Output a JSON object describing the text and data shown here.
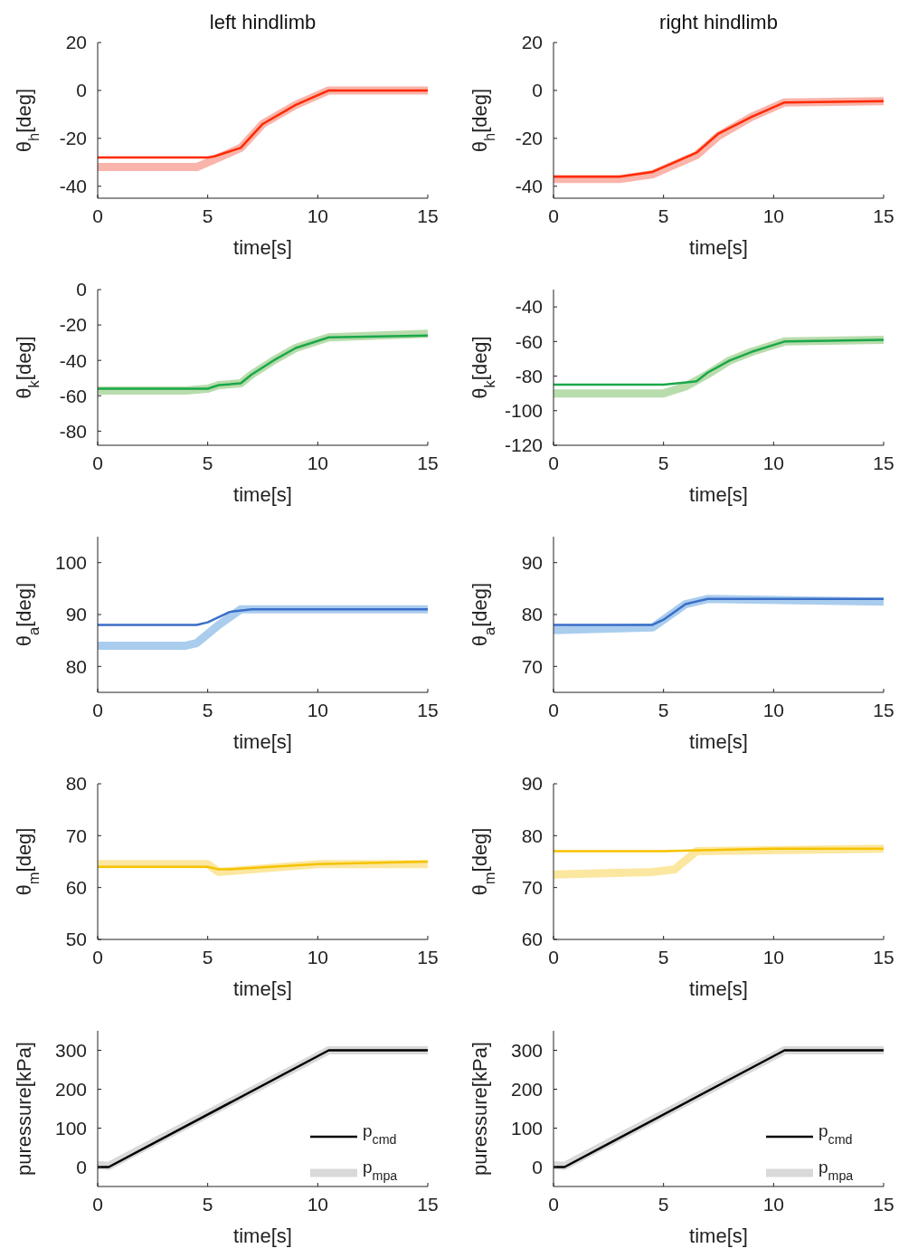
{
  "chart_data": [
    {
      "type": "line",
      "title": "left hindlimb",
      "xlabel": "time[s]",
      "ylabel": "θ$_{h}$[deg]",
      "xlim": [
        0,
        15
      ],
      "xticks": [
        0,
        5,
        10,
        15
      ],
      "ylim": [
        -45,
        20
      ],
      "yticks": [
        -40,
        -20,
        0,
        20
      ],
      "grid": false,
      "legend": false,
      "series": [
        {
          "color": "#f9b4ab",
          "x": [
            0,
            4.5,
            5.5,
            6.5,
            7.5,
            9,
            10.5,
            15
          ],
          "values": [
            -32,
            -32,
            -28,
            -24,
            -14,
            -6,
            0,
            0
          ]
        },
        {
          "color": "#ff2a00",
          "x": [
            0,
            5,
            5.3,
            6.5,
            7.5,
            9,
            10.5,
            15
          ],
          "values": [
            -28,
            -28,
            -27.5,
            -24,
            -14,
            -6,
            0,
            0
          ]
        }
      ]
    },
    {
      "type": "line",
      "title": "right hindlimb",
      "xlabel": "time[s]",
      "ylabel": "θ$_{h}$[deg]",
      "xlim": [
        0,
        15
      ],
      "xticks": [
        0,
        5,
        10,
        15
      ],
      "ylim": [
        -45,
        20
      ],
      "yticks": [
        -40,
        -20,
        0,
        20
      ],
      "grid": false,
      "legend": false,
      "series": [
        {
          "color": "#f9b4ab",
          "x": [
            0,
            3,
            4.5,
            5.5,
            6.5,
            7.5,
            9,
            10.5,
            15
          ],
          "values": [
            -37,
            -37,
            -35,
            -31,
            -27,
            -19,
            -11,
            -5,
            -4.5
          ]
        },
        {
          "color": "#ff2a00",
          "x": [
            0,
            3,
            4.5,
            5.5,
            6.5,
            7.5,
            9,
            10.5,
            15
          ],
          "values": [
            -36,
            -36,
            -34,
            -30,
            -26,
            -18,
            -11,
            -5,
            -4.5
          ]
        }
      ]
    },
    {
      "type": "line",
      "xlabel": "time[s]",
      "ylabel": "θ$_{k}$[deg]",
      "xlim": [
        0,
        15
      ],
      "xticks": [
        0,
        5,
        10,
        15
      ],
      "ylim": [
        -88,
        0
      ],
      "yticks": [
        -80,
        -60,
        -40,
        -20,
        0
      ],
      "grid": false,
      "legend": false,
      "series": [
        {
          "color": "#b9dcac",
          "x": [
            0,
            4,
            5,
            5.5,
            6.5,
            7,
            8,
            9,
            10.5,
            15
          ],
          "values": [
            -57,
            -57,
            -56,
            -54,
            -53,
            -48,
            -40,
            -33,
            -27,
            -25
          ]
        },
        {
          "color": "#1aa84a",
          "x": [
            0,
            5,
            5.5,
            6.5,
            7,
            8,
            9,
            10.5,
            15
          ],
          "values": [
            -56,
            -56,
            -54,
            -53,
            -48,
            -40,
            -33,
            -27,
            -26
          ]
        }
      ]
    },
    {
      "type": "line",
      "xlabel": "time[s]",
      "ylabel": "θ$_{k}$[deg]",
      "xlim": [
        0,
        15
      ],
      "xticks": [
        0,
        5,
        10,
        15
      ],
      "ylim": [
        -120,
        -30
      ],
      "yticks": [
        -120,
        -100,
        -80,
        -60,
        -40
      ],
      "grid": false,
      "legend": false,
      "series": [
        {
          "color": "#b9dcac",
          "x": [
            0,
            5,
            6,
            7,
            8,
            9,
            10.5,
            15
          ],
          "values": [
            -90,
            -90,
            -86,
            -79,
            -71,
            -66,
            -60,
            -59
          ]
        },
        {
          "color": "#1aa84a",
          "x": [
            0,
            5,
            6.5,
            7,
            8,
            9,
            10.5,
            15
          ],
          "values": [
            -85,
            -85,
            -83,
            -78,
            -71,
            -66,
            -60,
            -59
          ]
        }
      ]
    },
    {
      "type": "line",
      "xlabel": "time[s]",
      "ylabel": "θ$_{a}$[deg]",
      "xlim": [
        0,
        15
      ],
      "xticks": [
        0,
        5,
        10,
        15
      ],
      "ylim": [
        75,
        105
      ],
      "yticks": [
        80,
        90,
        100
      ],
      "grid": false,
      "legend": false,
      "series": [
        {
          "color": "#aacdee",
          "x": [
            0,
            4,
            4.5,
            5.5,
            6.5,
            15
          ],
          "values": [
            84,
            84,
            84.5,
            88,
            91,
            91
          ]
        },
        {
          "color": "#3a6ec7",
          "x": [
            0,
            4.5,
            5,
            6,
            7,
            15
          ],
          "values": [
            88,
            88,
            88.5,
            90.5,
            91,
            91
          ]
        }
      ]
    },
    {
      "type": "line",
      "xlabel": "time[s]",
      "ylabel": "θ$_{a}$[deg]",
      "xlim": [
        0,
        15
      ],
      "xticks": [
        0,
        5,
        10,
        15
      ],
      "ylim": [
        65,
        95
      ],
      "yticks": [
        70,
        80,
        90
      ],
      "grid": false,
      "legend": false,
      "series": [
        {
          "color": "#aacdee",
          "x": [
            0,
            4.5,
            5,
            6,
            7,
            15
          ],
          "values": [
            77,
            77.5,
            79,
            82,
            83,
            82.5
          ]
        },
        {
          "color": "#3a6ec7",
          "x": [
            0,
            4.5,
            5,
            6,
            7,
            15
          ],
          "values": [
            78,
            78,
            79,
            82,
            83,
            83
          ]
        }
      ]
    },
    {
      "type": "line",
      "xlabel": "time[s]",
      "ylabel": "θ$_{m}$[deg]",
      "xlim": [
        0,
        15
      ],
      "xticks": [
        0,
        5,
        10,
        15
      ],
      "ylim": [
        50,
        80
      ],
      "yticks": [
        50,
        60,
        70,
        80
      ],
      "grid": false,
      "legend": false,
      "series": [
        {
          "color": "#fce7a0",
          "x": [
            0,
            5,
            5.5,
            10,
            15
          ],
          "values": [
            64.5,
            64.5,
            63,
            64.5,
            64.5
          ]
        },
        {
          "color": "#f5c200",
          "x": [
            0,
            5,
            5.5,
            6,
            10,
            15
          ],
          "values": [
            64,
            64,
            63.5,
            63.5,
            64.5,
            65
          ]
        }
      ]
    },
    {
      "type": "line",
      "xlabel": "time[s]",
      "ylabel": "θ$_{m}$[deg]",
      "xlim": [
        0,
        15
      ],
      "xticks": [
        0,
        5,
        10,
        15
      ],
      "ylim": [
        60,
        90
      ],
      "yticks": [
        60,
        70,
        80,
        90
      ],
      "grid": false,
      "legend": false,
      "series": [
        {
          "color": "#fce7a0",
          "x": [
            0,
            4.5,
            5.5,
            6.5,
            15
          ],
          "values": [
            72.5,
            73,
            73.5,
            77,
            77.5
          ]
        },
        {
          "color": "#f5c200",
          "x": [
            0,
            5,
            10,
            15
          ],
          "values": [
            77,
            77,
            77.5,
            77.5
          ]
        }
      ]
    },
    {
      "type": "line",
      "xlabel": "time[s]",
      "ylabel": "puressure[kPa]",
      "xlim": [
        0,
        15
      ],
      "xticks": [
        0,
        5,
        10,
        15
      ],
      "ylim": [
        -50,
        350
      ],
      "yticks": [
        0,
        100,
        200,
        300
      ],
      "grid": false,
      "legend": "bottom right",
      "series": [
        {
          "name": "p$_{mpa}$",
          "color": "#d9d9d9",
          "x": [
            0,
            0.5,
            10.5,
            15
          ],
          "values": [
            5,
            3,
            300,
            300
          ]
        },
        {
          "name": "p$_{cmd}$",
          "color": "#000000",
          "x": [
            0,
            0.5,
            10.5,
            15
          ],
          "values": [
            0,
            0,
            300,
            300
          ]
        }
      ]
    },
    {
      "type": "line",
      "xlabel": "time[s]",
      "ylabel": "puressure[kPa]",
      "xlim": [
        0,
        15
      ],
      "xticks": [
        0,
        5,
        10,
        15
      ],
      "ylim": [
        -50,
        350
      ],
      "yticks": [
        0,
        100,
        200,
        300
      ],
      "grid": false,
      "legend": "bottom right",
      "series": [
        {
          "name": "p$_{mpa}$",
          "color": "#d9d9d9",
          "x": [
            0,
            0.5,
            10.5,
            15
          ],
          "values": [
            5,
            3,
            300,
            300
          ]
        },
        {
          "name": "p$_{cmd}$",
          "color": "#000000",
          "x": [
            0,
            0.5,
            10.5,
            15
          ],
          "values": [
            0,
            0,
            300,
            300
          ]
        }
      ]
    }
  ]
}
